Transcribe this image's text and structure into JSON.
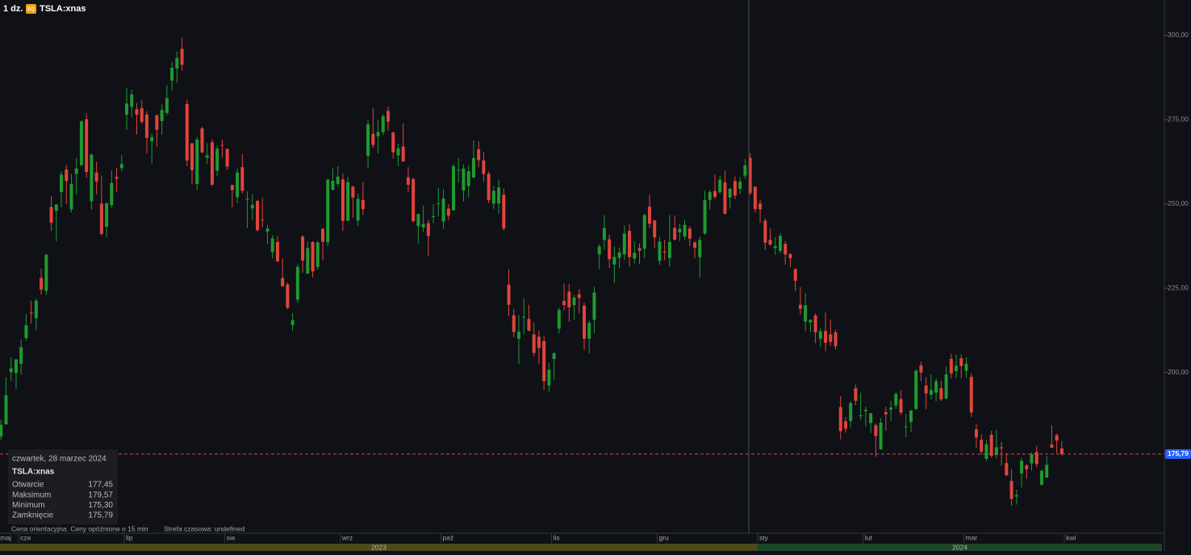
{
  "chart_data": {
    "type": "candlestick",
    "interval": "1 dz.",
    "badge": "EQ",
    "symbol": "TSLA:xnas",
    "up_color": "#1f9a2f",
    "down_color": "#e2443a",
    "ylim": [
      152.3,
      310.5
    ],
    "yticks": [
      {
        "value": 200,
        "label": "200,00"
      },
      {
        "value": 225,
        "label": "225,00"
      },
      {
        "value": 250,
        "label": "250,00"
      },
      {
        "value": 275,
        "label": "275,00"
      },
      {
        "value": 300,
        "label": "300,00"
      }
    ],
    "xlim": [
      -0.2,
      231.4
    ],
    "xticks": [
      {
        "value": 0,
        "label": "maj"
      },
      {
        "value": 4,
        "label": "cze"
      },
      {
        "value": 25,
        "label": "lip"
      },
      {
        "value": 45,
        "label": "sie"
      },
      {
        "value": 68,
        "label": "wrz"
      },
      {
        "value": 88,
        "label": "paź"
      },
      {
        "value": 110,
        "label": "lis"
      },
      {
        "value": 131,
        "label": "gru"
      },
      {
        "value": 151,
        "label": "sty"
      },
      {
        "value": 172,
        "label": "lut"
      },
      {
        "value": 192,
        "label": "mar"
      },
      {
        "value": 212,
        "label": "kwi"
      }
    ],
    "years": [
      {
        "label": "2023",
        "start": 0,
        "end": 151,
        "color": "#4b4a1b"
      },
      {
        "label": "2024",
        "start": 151,
        "end": 231.4,
        "color": "#1d4726"
      }
    ],
    "last_price": {
      "value": 175.79,
      "label": "175,79",
      "color": "#2962ff"
    },
    "tooltip": {
      "date": "czwartek, 28 marzec 2024",
      "symbol": "TSLA:xnas",
      "rows": [
        {
          "label": "Otwarcie",
          "value": "177,45"
        },
        {
          "label": "Maksimum",
          "value": "179,57"
        },
        {
          "label": "Minimum",
          "value": "175,30"
        },
        {
          "label": "Zamknięcie",
          "value": "175,79"
        }
      ]
    },
    "note": "Cena orientacyjna. Ceny opóźnione o 15 min",
    "timezone": "Strefa czasowa: undefined",
    "ohlc": [
      [
        181,
        186,
        180,
        184.5
      ],
      [
        184.6,
        198.6,
        184.5,
        193.2
      ],
      [
        200.1,
        204.5,
        197.5,
        201.2
      ],
      [
        199.8,
        203.9,
        195.1,
        203.9
      ],
      [
        202.6,
        209.8,
        199.4,
        207.5
      ],
      [
        210.2,
        217.3,
        209.4,
        214
      ],
      [
        217.8,
        221.3,
        214.5,
        217.6
      ],
      [
        216.1,
        221.9,
        212.5,
        221.3
      ],
      [
        228,
        230.8,
        223.1,
        224.6
      ],
      [
        224.2,
        235.2,
        223,
        234.9
      ],
      [
        249.1,
        252.4,
        242,
        244.4
      ],
      [
        247.9,
        250,
        238.9,
        249.8
      ],
      [
        253.5,
        259.7,
        248.9,
        258.7
      ],
      [
        260.2,
        261.6,
        250,
        256.8
      ],
      [
        248.4,
        258.9,
        247.5,
        255.9
      ],
      [
        258.9,
        263.6,
        252.8,
        260.5
      ],
      [
        261.5,
        274.8,
        261.1,
        274.5
      ],
      [
        275.1,
        276.9,
        257.8,
        259.5
      ],
      [
        250.8,
        265,
        248.3,
        264.6
      ],
      [
        259.3,
        262.5,
        252.8,
        256.6
      ],
      [
        250.1,
        258.4,
        240.7,
        241.1
      ],
      [
        243.2,
        250.4,
        240.1,
        250.2
      ],
      [
        249.7,
        259.9,
        248.9,
        256.2
      ],
      [
        258,
        260.7,
        253.6,
        257.5
      ],
      [
        260.6,
        264.5,
        259.6,
        261.8
      ],
      [
        276.5,
        284.3,
        272,
        279.8
      ],
      [
        278.8,
        283.9,
        275.7,
        282.5
      ],
      [
        278.1,
        279.9,
        270.6,
        276.5
      ],
      [
        278.4,
        280.8,
        273.8,
        274.4
      ],
      [
        276.5,
        277.5,
        265.1,
        269.6
      ],
      [
        268.6,
        270.9,
        262,
        269.8
      ],
      [
        276.3,
        276.5,
        267,
        272
      ],
      [
        274.6,
        279.5,
        270.6,
        277.9
      ],
      [
        277,
        285.3,
        276.3,
        281.4
      ],
      [
        286.6,
        292.2,
        283.6,
        290.4
      ],
      [
        290.2,
        295.3,
        286,
        293.3
      ],
      [
        296,
        299.3,
        289.5,
        291.3
      ],
      [
        279.6,
        280.9,
        261.2,
        262.9
      ],
      [
        268,
        268,
        255.8,
        260
      ],
      [
        255.9,
        269.9,
        254.1,
        269.1
      ],
      [
        272.4,
        272.9,
        265,
        265.3
      ],
      [
        263.7,
        268,
        261.8,
        264.4
      ],
      [
        268.3,
        269.1,
        255.3,
        255.7
      ],
      [
        259.9,
        267.3,
        258.2,
        266.4
      ],
      [
        267.5,
        269.1,
        263.8,
        267.4
      ],
      [
        266.3,
        266.5,
        260.2,
        261.1
      ],
      [
        255.6,
        255.7,
        249,
        254.1
      ],
      [
        252,
        260.5,
        250.3,
        259.3
      ],
      [
        260.9,
        264.8,
        253.1,
        253.9
      ],
      [
        251.5,
        253.7,
        242.8,
        251.5
      ],
      [
        248.7,
        252.8,
        245.3,
        249.7
      ],
      [
        250.9,
        251.1,
        241.9,
        242.2
      ],
      [
        245.4,
        251.8,
        243.1,
        245.3
      ],
      [
        241.8,
        243.8,
        238,
        242.7
      ],
      [
        235.7,
        240.7,
        233.8,
        239.8
      ],
      [
        238.7,
        240.5,
        232.6,
        233
      ],
      [
        228,
        233.9,
        225.4,
        225.6
      ],
      [
        226.1,
        226.7,
        218.8,
        219.2
      ],
      [
        214.1,
        217.6,
        212.4,
        215.5
      ],
      [
        221.6,
        232.1,
        220.6,
        231.3
      ],
      [
        240.3,
        240.8,
        229.6,
        233.2
      ],
      [
        229.3,
        238.9,
        229.3,
        236.9
      ],
      [
        238.7,
        238.9,
        228.2,
        230
      ],
      [
        231.3,
        239,
        230.4,
        238.6
      ],
      [
        242.6,
        242.8,
        233.2,
        238.8
      ],
      [
        238.6,
        257.5,
        237.6,
        257.2
      ],
      [
        254.2,
        260.5,
        254,
        256.9
      ],
      [
        255.9,
        261.2,
        255.1,
        258.1
      ],
      [
        257.3,
        259.1,
        242,
        245
      ],
      [
        245,
        258,
        244.9,
        256.5
      ],
      [
        255.1,
        255.4,
        245.9,
        251.9
      ],
      [
        245.1,
        253,
        243.5,
        251.5
      ],
      [
        251.2,
        256.5,
        246.7,
        248.5
      ],
      [
        264.3,
        274.9,
        260.6,
        273.6
      ],
      [
        270.8,
        278.4,
        266.6,
        267.5
      ],
      [
        270.1,
        274.9,
        265,
        271.3
      ],
      [
        271.3,
        276.7,
        270.4,
        276
      ],
      [
        277.6,
        278.9,
        271.7,
        274.4
      ],
      [
        271.2,
        271.4,
        263.4,
        265.3
      ],
      [
        264.4,
        267.9,
        261.2,
        266.5
      ],
      [
        267,
        273.9,
        262.5,
        262.6
      ],
      [
        257.9,
        260.9,
        253.5,
        255.7
      ],
      [
        257.4,
        257.8,
        244.5,
        244.9
      ],
      [
        243.4,
        247.1,
        238.3,
        247
      ],
      [
        243,
        249.5,
        241.7,
        244.1
      ],
      [
        244.3,
        245.3,
        234.6,
        240.5
      ],
      [
        246.1,
        250,
        244.3,
        246.4
      ],
      [
        250,
        254.8,
        246.3,
        250.2
      ],
      [
        244.8,
        254.3,
        242.6,
        251.6
      ],
      [
        248.6,
        250,
        245.1,
        246.5
      ],
      [
        248.1,
        261.9,
        248.1,
        261.2
      ],
      [
        260,
        263.6,
        256.3,
        260.1
      ],
      [
        254,
        261.7,
        250.7,
        260.5
      ],
      [
        255.3,
        261.4,
        252,
        259.7
      ],
      [
        257.8,
        268.9,
        257.7,
        263.6
      ],
      [
        266.2,
        268.6,
        260.9,
        263
      ],
      [
        262.9,
        265.4,
        256.6,
        258.9
      ],
      [
        258.9,
        259.6,
        250.2,
        251.1
      ],
      [
        250.1,
        255.4,
        248.5,
        253.9
      ],
      [
        250.1,
        257.2,
        247.1,
        254.9
      ],
      [
        252.7,
        254.6,
        242.1,
        242.7
      ],
      [
        226,
        230.6,
        216.8,
        220.1
      ],
      [
        217,
        218.9,
        210.4,
        212
      ],
      [
        210,
        217,
        202.5,
        212.1
      ],
      [
        216.5,
        222.1,
        211.3,
        216.5
      ],
      [
        215.9,
        220.1,
        212.2,
        212.4
      ],
      [
        211.3,
        214.8,
        204.9,
        205.8
      ],
      [
        210.6,
        212.4,
        202.5,
        207.3
      ],
      [
        209.3,
        210.9,
        194.7,
        197.4
      ],
      [
        196.1,
        202.8,
        194.1,
        200.8
      ],
      [
        204,
        206,
        197.9,
        205.7
      ],
      [
        213,
        219.2,
        211.5,
        218.5
      ],
      [
        221.2,
        226.4,
        218.4,
        220
      ],
      [
        224,
        226.3,
        215,
        219.3
      ],
      [
        220,
        223.1,
        215.7,
        222.2
      ],
      [
        223.2,
        224.7,
        217.6,
        222.1
      ],
      [
        219.8,
        220.8,
        206.7,
        210
      ],
      [
        210,
        215.4,
        205.7,
        214.7
      ],
      [
        215.6,
        225.4,
        211.6,
        223.7
      ],
      [
        235,
        238.1,
        230.7,
        237.4
      ],
      [
        239.3,
        246.7,
        236.5,
        242.8
      ],
      [
        239.5,
        240.9,
        231,
        233.6
      ],
      [
        232,
        237.4,
        226.5,
        234.3
      ],
      [
        234,
        237.1,
        231,
        235.6
      ],
      [
        235,
        243.6,
        233.3,
        241.2
      ],
      [
        242,
        244,
        231.4,
        234.2
      ],
      [
        233.8,
        238.8,
        232.3,
        235.5
      ],
      [
        236.9,
        238.3,
        232.1,
        236.1
      ],
      [
        236.7,
        247,
        234,
        246.7
      ],
      [
        249.2,
        252.8,
        242.8,
        244.1
      ],
      [
        245.1,
        245.2,
        236.9,
        240.1
      ],
      [
        233.1,
        240.2,
        231.9,
        238.8
      ],
      [
        235.8,
        239.4,
        233.3,
        235.6
      ],
      [
        233.9,
        246.7,
        231.3,
        238.7
      ],
      [
        242.9,
        246.6,
        239.2,
        239.4
      ],
      [
        241.6,
        244.1,
        239,
        242.6
      ],
      [
        240.3,
        245.3,
        239.4,
        243.8
      ],
      [
        242.7,
        243.4,
        237.5,
        239.7
      ],
      [
        238.6,
        239,
        233.9,
        237
      ],
      [
        234.2,
        240.3,
        228.2,
        239.3
      ],
      [
        241.2,
        253.9,
        240.8,
        251.1
      ],
      [
        251.2,
        254.1,
        248.3,
        253.5
      ],
      [
        253.8,
        258.7,
        251.4,
        252.1
      ],
      [
        253.5,
        258.3,
        253,
        257.2
      ],
      [
        256.4,
        259.8,
        246.8,
        247.1
      ],
      [
        251.9,
        254.8,
        248.6,
        254.5
      ],
      [
        256.8,
        258.2,
        251.4,
        252.5
      ],
      [
        254.5,
        258,
        252.9,
        256.6
      ],
      [
        258.4,
        263.3,
        257.5,
        261.4
      ],
      [
        263.7,
        265.1,
        252.7,
        253.2
      ],
      [
        255.1,
        255.2,
        247.4,
        248.5
      ],
      [
        250.1,
        251.3,
        244.4,
        248.4
      ],
      [
        245,
        245.7,
        236.3,
        238.5
      ],
      [
        239.3,
        242.7,
        237.7,
        237.9
      ],
      [
        236.9,
        240.1,
        234.9,
        237.5
      ],
      [
        236.1,
        241.3,
        235.3,
        240.5
      ],
      [
        238.1,
        239,
        232,
        235
      ],
      [
        235.1,
        235.5,
        231.3,
        233.9
      ],
      [
        230.6,
        230.9,
        224.1,
        227.2
      ],
      [
        220.1,
        225.3,
        217.2,
        218.9
      ],
      [
        215.1,
        223.5,
        212.2,
        219.9
      ],
      [
        214.9,
        215.7,
        212,
        215.6
      ],
      [
        216.9,
        217.5,
        208.7,
        211.9
      ],
      [
        210,
        213.2,
        207.6,
        212.2
      ],
      [
        212.3,
        217.8,
        206.3,
        208.8
      ],
      [
        211.3,
        215.7,
        207.8,
        209.1
      ],
      [
        211.9,
        212.7,
        206.8,
        207.8
      ],
      [
        189.7,
        193,
        180.1,
        182.6
      ],
      [
        185.5,
        186.8,
        182.1,
        183.3
      ],
      [
        185.6,
        191.5,
        183.7,
        190.9
      ],
      [
        195.3,
        196.4,
        190.3,
        191.6
      ],
      [
        187,
        194,
        185.9,
        187.3
      ],
      [
        188.5,
        189.9,
        184,
        188.9
      ],
      [
        185,
        188,
        182,
        187.9
      ],
      [
        184.3,
        184.8,
        175,
        181.1
      ],
      [
        177.2,
        186.5,
        177.1,
        185.1
      ],
      [
        188.2,
        189.8,
        182.7,
        187.6
      ],
      [
        189,
        191.6,
        185.6,
        189.6
      ],
      [
        190.2,
        194.1,
        189.2,
        193.6
      ],
      [
        192.1,
        194.7,
        187.4,
        188.1
      ],
      [
        184,
        187.7,
        180.8,
        184
      ],
      [
        185.3,
        188.9,
        182.3,
        188.7
      ],
      [
        189.2,
        200.9,
        188.9,
        200.5
      ],
      [
        202.1,
        203.2,
        197.4,
        200
      ],
      [
        196.1,
        198.6,
        189.1,
        193.8
      ],
      [
        193.4,
        199.4,
        191.9,
        194.8
      ],
      [
        194,
        198.3,
        191.4,
        197.4
      ],
      [
        195.3,
        197.6,
        191.5,
        192
      ],
      [
        192.3,
        201.8,
        192,
        199.4
      ],
      [
        204,
        205.6,
        198.3,
        199.7
      ],
      [
        200.4,
        205.3,
        198.4,
        202
      ],
      [
        204.2,
        205.3,
        198.4,
        201.9
      ],
      [
        200.5,
        204.5,
        198.5,
        202.6
      ],
      [
        198.7,
        199.8,
        186.7,
        188.1
      ],
      [
        183.1,
        184.6,
        177.6,
        180.7
      ],
      [
        180,
        181.6,
        175.6,
        176.5
      ],
      [
        174.4,
        180,
        173.7,
        178.7
      ],
      [
        181.5,
        182.7,
        174.7,
        175.3
      ],
      [
        175.5,
        182.9,
        174.6,
        177.8
      ],
      [
        177.8,
        179.4,
        172.4,
        177.5
      ],
      [
        173.1,
        176.1,
        169.2,
        169.5
      ],
      [
        167.8,
        171.2,
        160.5,
        162.5
      ],
      [
        163.2,
        165.2,
        160.8,
        163.6
      ],
      [
        170,
        174.7,
        165.9,
        173.8
      ],
      [
        172.4,
        172.8,
        168.4,
        171.3
      ],
      [
        173,
        176.3,
        170.8,
        175.7
      ],
      [
        176.4,
        178.2,
        171.8,
        172.8
      ],
      [
        166.7,
        171.2,
        166.3,
        170.8
      ],
      [
        168.8,
        175.2,
        168.7,
        172.6
      ],
      [
        178.6,
        184.3,
        177.6,
        177.7
      ],
      [
        181.4,
        181.9,
        176.1,
        179.8
      ],
      [
        177.45,
        179.57,
        175.3,
        175.79
      ]
    ]
  }
}
